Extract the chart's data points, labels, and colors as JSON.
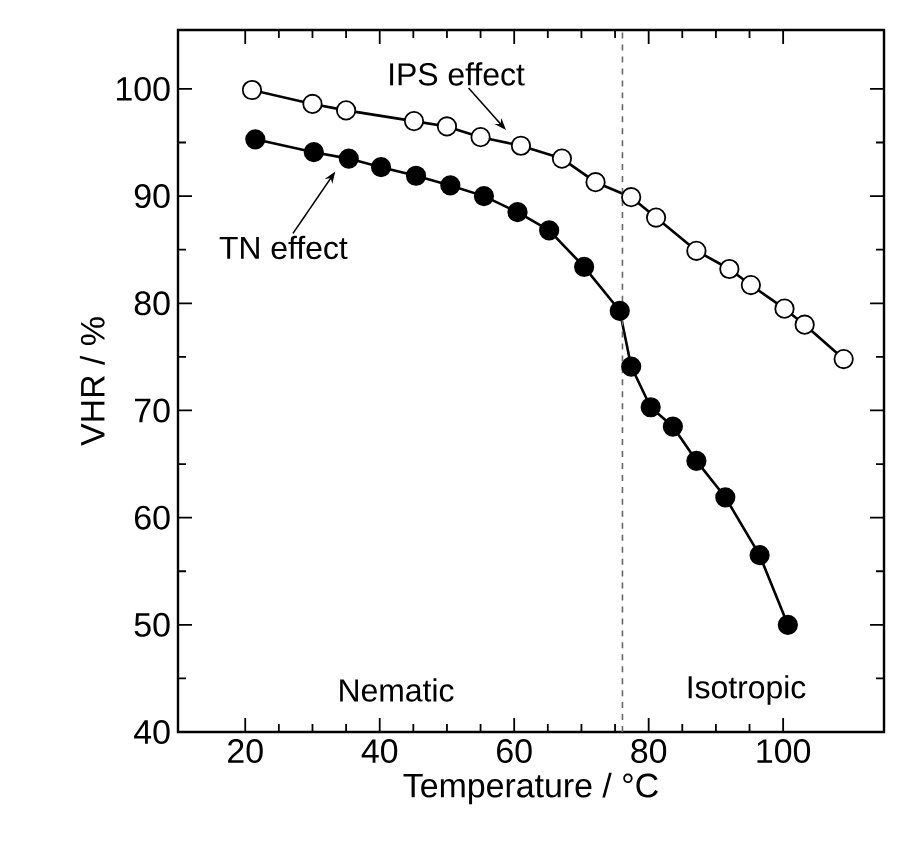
{
  "chart_data": {
    "type": "line",
    "xlabel": "Temperature / °C",
    "ylabel": "VHR / %",
    "xlim": [
      10,
      115
    ],
    "ylim": [
      40,
      105.5
    ],
    "xticks": [
      20,
      40,
      60,
      80,
      100
    ],
    "yticks": [
      40,
      50,
      60,
      70,
      80,
      90,
      100
    ],
    "marker": "circle",
    "line_style": "solid",
    "series": [
      {
        "color": "#ffffff",
        "x": [
          21.0,
          30.0,
          35.0,
          45.1,
          50.0,
          55.0,
          61.0,
          67.1,
          72.1,
          77.4,
          81.1,
          87.1,
          92.0,
          95.2,
          100.2,
          103.2,
          109.0
        ],
        "values": [
          99.9,
          98.6,
          98.0,
          97.0,
          96.5,
          95.5,
          94.7,
          93.5,
          91.3,
          89.9,
          88.0,
          84.9,
          83.2,
          81.7,
          79.5,
          78.0,
          74.8
        ]
      },
      {
        "color": "#000000",
        "x": [
          21.5,
          30.2,
          35.4,
          40.2,
          45.4,
          50.5,
          55.5,
          60.5,
          65.2,
          70.4,
          75.7,
          77.4,
          80.3,
          83.6,
          87.1,
          91.4,
          96.5,
          100.7
        ],
        "values": [
          95.3,
          94.1,
          93.5,
          92.7,
          91.9,
          91.0,
          90.0,
          88.5,
          86.8,
          83.4,
          79.3,
          74.1,
          70.3,
          68.5,
          65.3,
          61.9,
          56.5,
          50.0
        ]
      }
    ],
    "ref_lines": [
      {
        "axis": "x",
        "value": 76.1,
        "line_style": "dashed"
      }
    ],
    "annotations": [
      "IPS effect",
      {
        "text": "TN effect",
        "x": 33.4,
        "y": 92.3
      },
      "Nematic",
      "Isotropic"
    ]
  }
}
